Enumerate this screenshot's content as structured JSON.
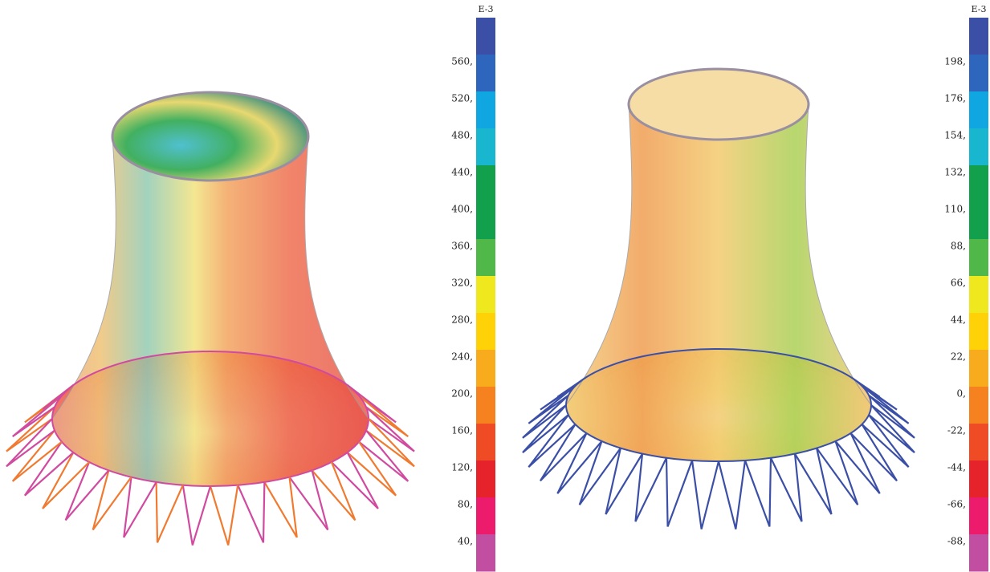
{
  "legends": [
    {
      "unit": "E-3",
      "labels": [
        "560,",
        "520,",
        "480,",
        "440,",
        "400,",
        "360,",
        "320,",
        "280,",
        "240,",
        "200,",
        "160,",
        "120,",
        "80,",
        "40,"
      ]
    },
    {
      "unit": "E-3",
      "labels": [
        "198,",
        "176,",
        "154,",
        "132,",
        "110,",
        "88,",
        "66,",
        "44,",
        "22,",
        "0,",
        "-22,",
        "-44,",
        "-66,",
        "-88,"
      ]
    }
  ],
  "colors": [
    "#3b4fa6",
    "#2f66bd",
    "#0fa6e2",
    "#18b6cf",
    "#13a04c",
    "#13a04c",
    "#4fb848",
    "#f0e81e",
    "#fed206",
    "#f8ab1c",
    "#f5821f",
    "#ef4b25",
    "#e6232b",
    "#ec1b6b",
    "#c24ea1"
  ]
}
